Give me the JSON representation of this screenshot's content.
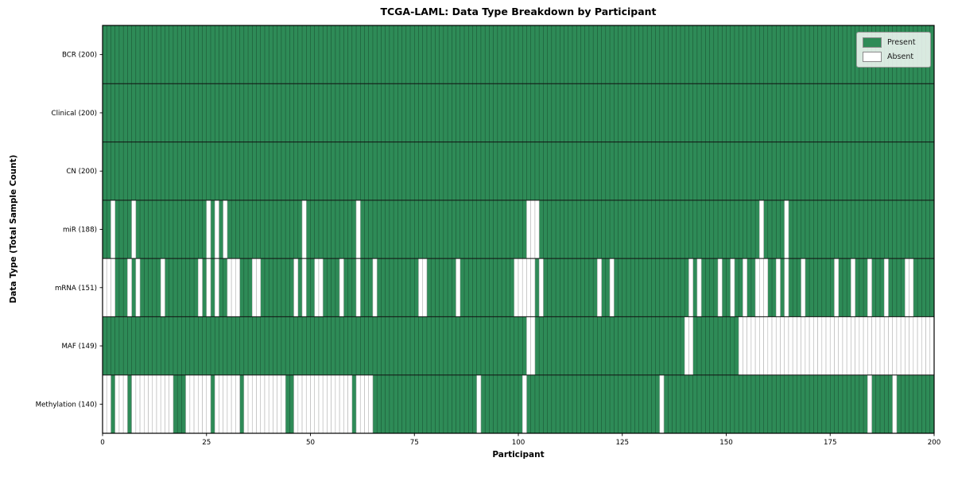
{
  "chart_data": {
    "type": "heatmap",
    "title": "TCGA-LAML: Data Type Breakdown by Participant",
    "xlabel": "Participant",
    "ylabel": "Data Type (Total Sample Count)",
    "x_range": [
      0,
      200
    ],
    "n_participants": 200,
    "x_ticks": [
      0,
      25,
      50,
      75,
      100,
      125,
      150,
      175,
      200
    ],
    "grid": true,
    "legend_position": "upper right",
    "legend": [
      {
        "label": "Present",
        "color": "#2e8b57"
      },
      {
        "label": "Absent",
        "color": "#ffffff"
      }
    ],
    "colors": {
      "present": "#2e8b57",
      "absent": "#ffffff",
      "cell_edge_on_green": "rgba(10,30,18,0.65)",
      "cell_edge_on_white": "#b3b3b3",
      "row_separator": "#111111",
      "axis": "#000000"
    },
    "rows": [
      {
        "name": "BCR",
        "label": "BCR (200)",
        "present_count": 200,
        "absent": []
      },
      {
        "name": "Clinical",
        "label": "Clinical (200)",
        "present_count": 200,
        "absent": []
      },
      {
        "name": "CN",
        "label": "CN (200)",
        "present_count": 200,
        "absent": []
      },
      {
        "name": "miR",
        "label": "miR (188)",
        "present_count": 188,
        "absent": [
          2,
          7,
          25,
          27,
          29,
          48,
          61,
          102,
          103,
          104,
          158,
          164
        ]
      },
      {
        "name": "mRNA",
        "label": "mRNA (151)",
        "present_count": 151,
        "absent": [
          0,
          1,
          2,
          6,
          8,
          14,
          23,
          25,
          27,
          30,
          31,
          32,
          36,
          37,
          46,
          48,
          51,
          52,
          57,
          61,
          65,
          76,
          77,
          85,
          99,
          100,
          101,
          102,
          103,
          105,
          119,
          122,
          141,
          143,
          148,
          151,
          154,
          157,
          158,
          159,
          162,
          164,
          168,
          176,
          180,
          184,
          188,
          193,
          194
        ]
      },
      {
        "name": "MAF",
        "label": "MAF (149)",
        "present_count": 149,
        "absent": [
          102,
          103,
          140,
          141,
          153,
          154,
          155,
          156,
          157,
          158,
          159,
          160,
          161,
          162,
          163,
          164,
          165,
          166,
          167,
          168,
          169,
          170,
          171,
          172,
          173,
          174,
          175,
          176,
          177,
          178,
          179,
          180,
          181,
          182,
          183,
          184,
          185,
          186,
          187,
          188,
          189,
          190,
          191,
          192,
          193,
          194,
          195,
          196,
          197,
          198,
          199
        ]
      },
      {
        "name": "Methylation",
        "label": "Methylation (140)",
        "present_count": 140,
        "absent": [
          0,
          1,
          3,
          4,
          5,
          7,
          8,
          9,
          10,
          11,
          12,
          13,
          14,
          15,
          16,
          20,
          21,
          22,
          23,
          24,
          25,
          27,
          28,
          29,
          30,
          31,
          32,
          34,
          35,
          36,
          37,
          38,
          39,
          40,
          41,
          42,
          43,
          46,
          47,
          48,
          49,
          50,
          51,
          52,
          53,
          54,
          55,
          56,
          57,
          58,
          59,
          61,
          62,
          63,
          64,
          90,
          101,
          134,
          184,
          190
        ]
      }
    ]
  }
}
